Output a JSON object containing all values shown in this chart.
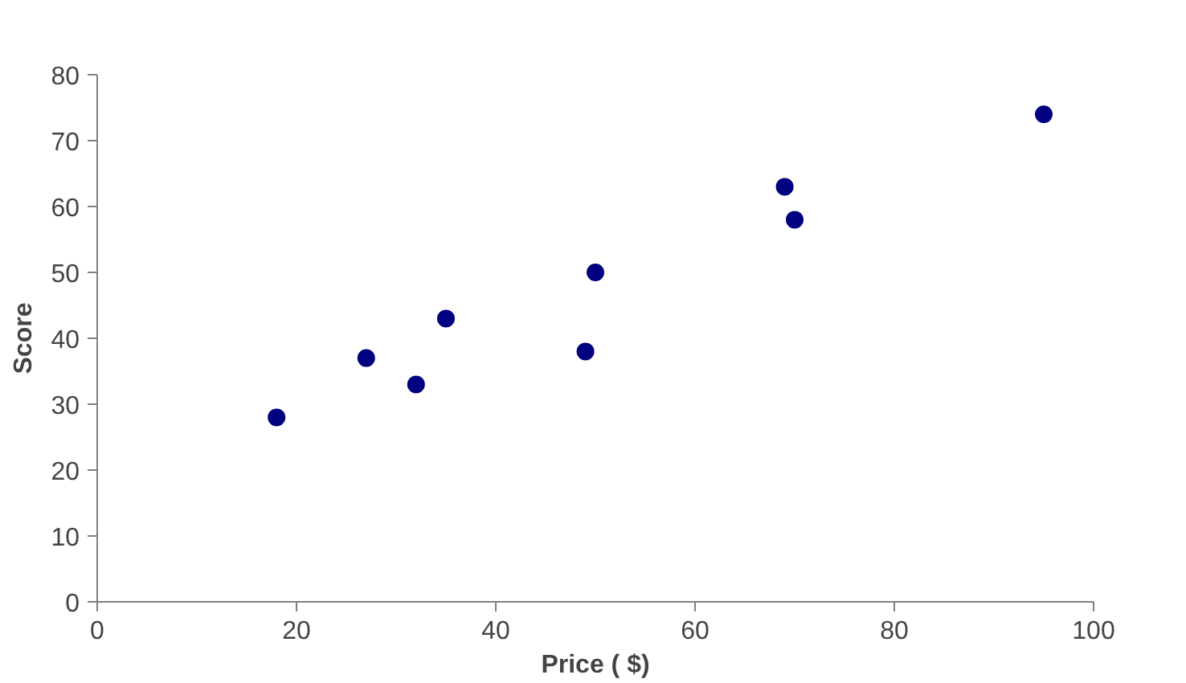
{
  "chart_data": {
    "type": "scatter",
    "xlabel": "Price ( $)",
    "ylabel": "Score",
    "x": [
      18,
      27,
      32,
      35,
      49,
      50,
      69,
      70,
      95
    ],
    "values": [
      28,
      37,
      33,
      43,
      38,
      50,
      63,
      58,
      74
    ],
    "color": "#000080",
    "marker": "circle",
    "grid": false,
    "xlim": [
      0,
      100
    ],
    "xticks": [
      0,
      20,
      40,
      60,
      80,
      100
    ],
    "ylim": [
      0,
      80
    ],
    "yticks": [
      0,
      10,
      20,
      30,
      40,
      50,
      60,
      70,
      80
    ]
  }
}
